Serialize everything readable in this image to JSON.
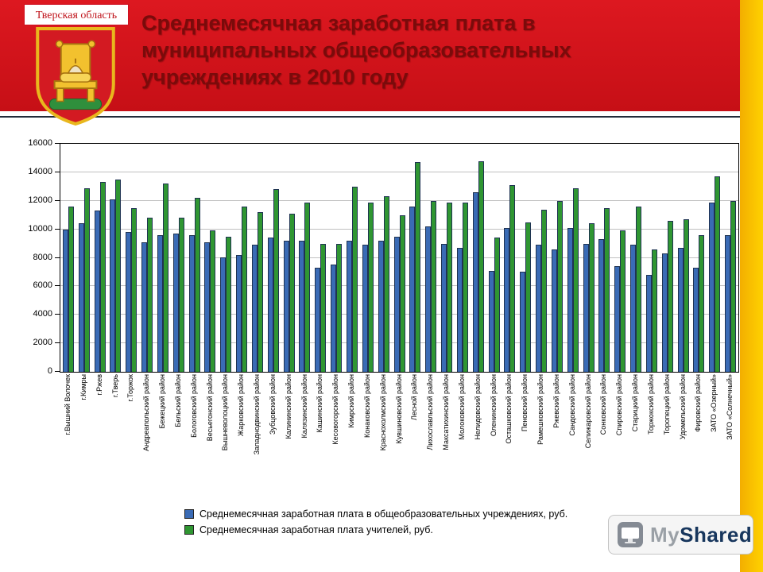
{
  "header": {
    "title_lines": [
      "Среднемесячная заработная плата в",
      "муниципальных общеобразовательных",
      "учреждениях в 2010 году"
    ]
  },
  "emblem": {
    "region_label": "Тверская область"
  },
  "watermark": {
    "brand_my": "My",
    "brand_shared": "Shared"
  },
  "colors": {
    "header_red": "#d2141c",
    "accent_yellow": "#ffc800",
    "title_dark_red": "#7a0b0b",
    "bar_blue": "#3a6bb5",
    "bar_green": "#2f9632"
  },
  "chart_data": {
    "type": "bar",
    "title": "",
    "xlabel": "",
    "ylabel": "",
    "ylim": [
      0,
      16000
    ],
    "yticks": [
      0,
      2000,
      4000,
      6000,
      8000,
      10000,
      12000,
      14000,
      16000
    ],
    "grid": true,
    "legend_position": "bottom",
    "categories": [
      "г.Вышний Волочек",
      "г.Кимры",
      "г.Ржев",
      "г.Тверь",
      "г.Торжок",
      "Андреапольский район",
      "Бежецкий район",
      "Бельский район",
      "Бологовский район",
      "Весьегонский район",
      "Вышневолоцкий район",
      "Жарковский район",
      "Западнодвинский район",
      "Зубцовский район",
      "Калининский район",
      "Калязинский район",
      "Кашинский район",
      "Кесовогорский район",
      "Кимрский район",
      "Конаковский район",
      "Краснохолмский район",
      "Кувшиновский район",
      "Лесной район",
      "Лихославльский район",
      "Максатихинский район",
      "Молоковский район",
      "Нелидовский район",
      "Оленинский район",
      "Осташковский район",
      "Пеновский район",
      "Рамешковский район",
      "Ржевский район",
      "Сандовский район",
      "Селижаровский район",
      "Сонковский район",
      "Спировский район",
      "Старицкий район",
      "Торжокский район",
      "Торопецкий район",
      "Удомельский район",
      "Фировский район",
      "ЗАТО «Озерный»",
      "ЗАТО «Солнечный»"
    ],
    "series": [
      {
        "name": "Среднемесячная заработная плата в общеобразовательных учреждениях, руб.",
        "color": "#3a6bb5",
        "values": [
          10000,
          10400,
          11300,
          12100,
          9800,
          9100,
          9600,
          9700,
          9600,
          9100,
          8000,
          8200,
          8900,
          9400,
          9200,
          9200,
          7300,
          7500,
          9200,
          8900,
          9200,
          9500,
          11600,
          10200,
          9000,
          8700,
          12600,
          7100,
          10100,
          7000,
          8900,
          8600,
          10100,
          9000,
          9300,
          7400,
          8900,
          6800,
          8300,
          8700,
          7300,
          11900,
          9600
        ]
      },
      {
        "name": "Среднемесячная заработная плата учителей, руб.",
        "color": "#2f9632",
        "values": [
          11600,
          12900,
          13300,
          13500,
          11500,
          10800,
          13200,
          10800,
          12200,
          9900,
          9500,
          11600,
          11200,
          12800,
          11100,
          11900,
          9000,
          9000,
          13000,
          11900,
          12300,
          11000,
          14700,
          12000,
          11900,
          11900,
          14800,
          9400,
          13100,
          10500,
          11400,
          12000,
          12900,
          10400,
          11500,
          9900,
          11600,
          8600,
          10600,
          10700,
          9600,
          13700,
          12000
        ]
      }
    ]
  }
}
